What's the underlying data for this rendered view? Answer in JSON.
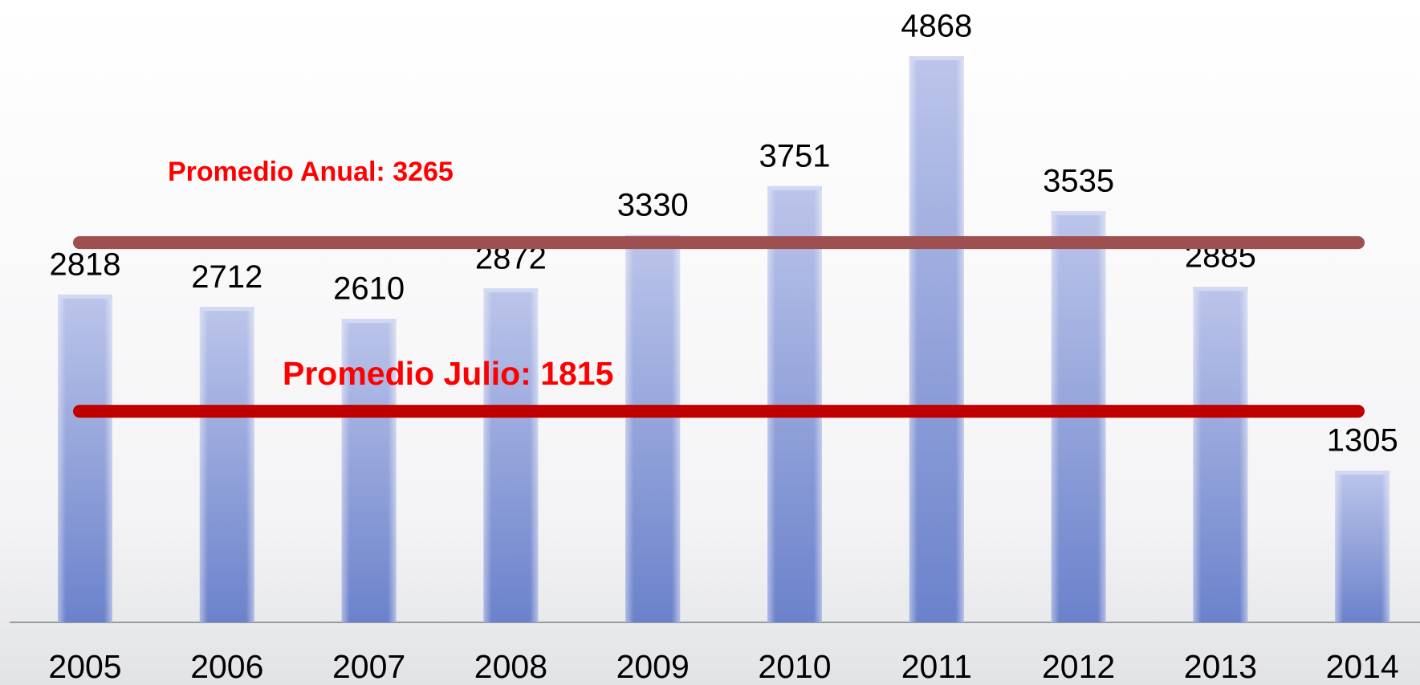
{
  "chart_data": {
    "type": "bar",
    "categories": [
      "2005",
      "2006",
      "2007",
      "2008",
      "2009",
      "2010",
      "2011",
      "2012",
      "2013",
      "2014"
    ],
    "values": [
      2818,
      2712,
      2610,
      2872,
      3330,
      3751,
      4868,
      3535,
      2885,
      1305
    ],
    "color": "#7b8fd2",
    "reference_lines": [
      {
        "label": "Promedio Anual: 3265",
        "value": 3265,
        "color": "#9e4f4f",
        "label_color": "#ff0000"
      },
      {
        "label": "Promedio Julio: 1815",
        "value": 1815,
        "color": "#c00000",
        "label_color": "#ff0000"
      }
    ]
  }
}
